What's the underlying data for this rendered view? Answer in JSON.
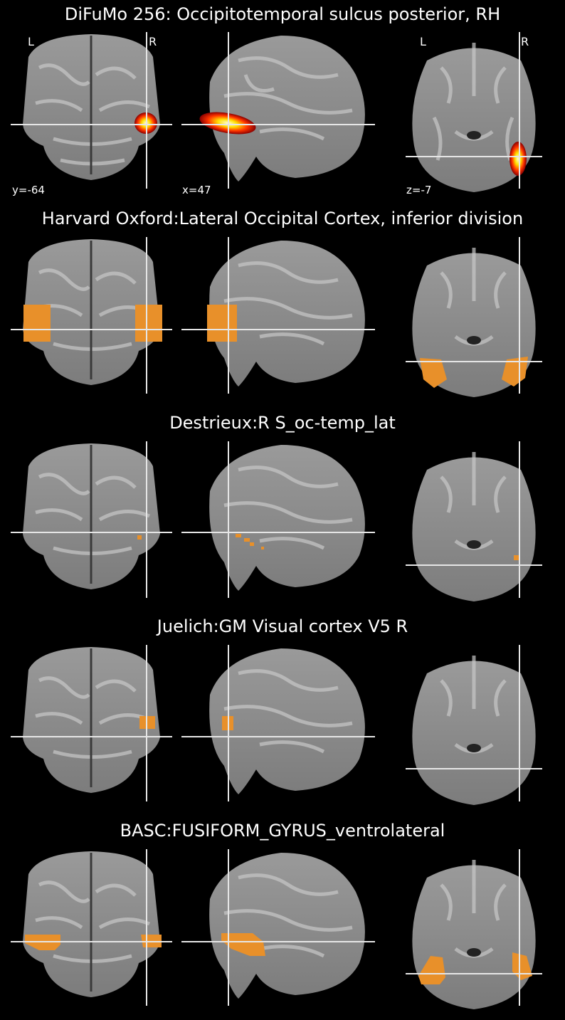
{
  "colors": {
    "background": "#000000",
    "crosshair": "#ffffff",
    "overlay": "#e8902a",
    "heat_low": "#8a0000",
    "heat_mid": "#ff3300",
    "heat_high": "#ffe000",
    "heat_peak": "#ffffd0"
  },
  "orientation": {
    "left": "L",
    "right": "R"
  },
  "coords": {
    "coronal": "y=-64",
    "sagittal": "x=47",
    "axial": "z=-7"
  },
  "panels": [
    {
      "title": "DiFuMo 256: Occipitotemporal sulcus posterior, RH",
      "overlay_style": "heatmap"
    },
    {
      "title": "Harvard Oxford:Lateral Occipital Cortex, inferior division",
      "overlay_style": "orange"
    },
    {
      "title": "Destrieux:R S_oc-temp_lat",
      "overlay_style": "orange"
    },
    {
      "title": "Juelich:GM Visual cortex V5 R",
      "overlay_style": "orange"
    },
    {
      "title": "BASC:FUSIFORM_GYRUS_ventrolateral",
      "overlay_style": "orange"
    }
  ]
}
